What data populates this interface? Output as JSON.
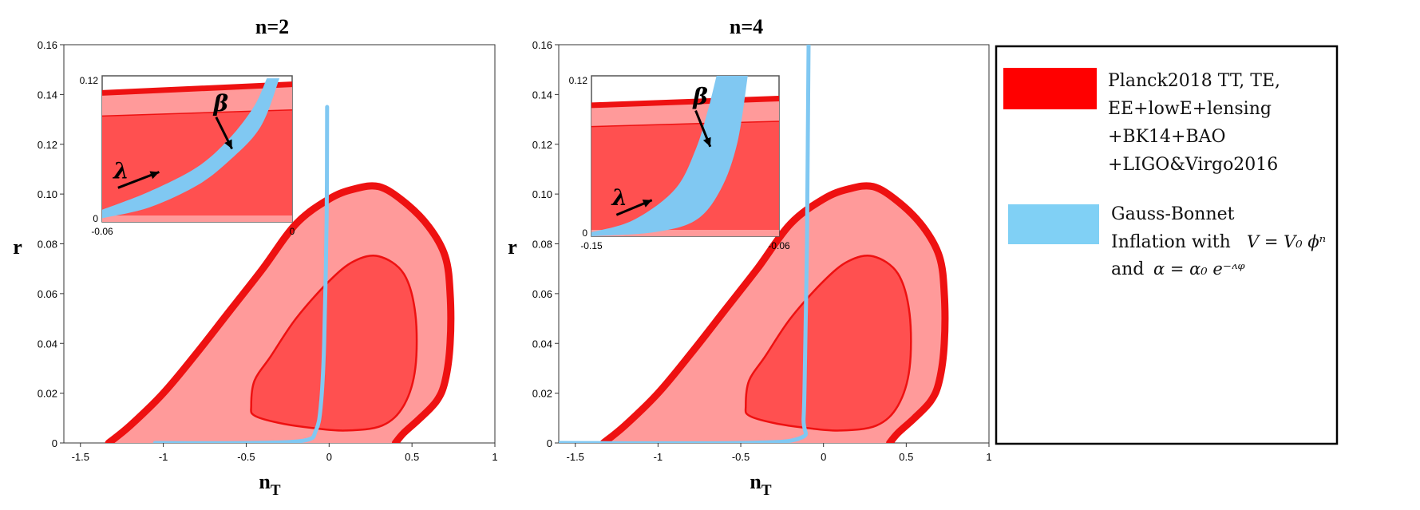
{
  "colors": {
    "outer_contour": "#ff9a9a",
    "inner_contour": "#ff5050",
    "contour_edge": "#ee1111",
    "model_band": "#80c8f2",
    "legend_red": "#ff0000",
    "legend_blue": "#80d0f5",
    "arrow": "#000000"
  },
  "chart_data": [
    {
      "type": "area",
      "panel": "n=2",
      "title": "n=2",
      "xlabel": "n",
      "xlabel_sub": "T",
      "ylabel": "r",
      "xlim": [
        -1.6,
        1.0
      ],
      "ylim": [
        0,
        0.16
      ],
      "xticks": [
        "-1.5",
        "-1",
        "-0.5",
        "0",
        "0.5",
        "1"
      ],
      "xtick_values": [
        -1.5,
        -1,
        -0.5,
        0,
        0.5,
        1
      ],
      "yticks": [
        "0",
        "0.02",
        "0.04",
        "0.06",
        "0.08",
        "0.10",
        "0.12",
        "0.14",
        "0.16"
      ],
      "ytick_values": [
        0,
        0.02,
        0.04,
        0.06,
        0.08,
        0.1,
        0.12,
        0.14,
        0.16
      ],
      "series": [
        {
          "name": "Planck2018 TT, TE, EE+lowE+lensing +BK14+BAO +LIGO&Virgo2016",
          "kind": "contour-2sigma",
          "x": [
            -1.33,
            -1.2,
            -1.0,
            -0.8,
            -0.6,
            -0.4,
            -0.2,
            0.0,
            0.15,
            0.3,
            0.45,
            0.6,
            0.7,
            0.73,
            0.73,
            0.7,
            0.65,
            0.55,
            0.45,
            0.4
          ],
          "y": [
            0.0,
            0.007,
            0.02,
            0.036,
            0.053,
            0.07,
            0.088,
            0.098,
            0.102,
            0.103,
            0.097,
            0.087,
            0.075,
            0.06,
            0.04,
            0.025,
            0.017,
            0.01,
            0.004,
            0.0
          ]
        },
        {
          "name": "Planck2018 TT, TE, EE+lowE+lensing +BK14+BAO +LIGO&Virgo2016",
          "kind": "contour-1sigma",
          "x": [
            -0.47,
            -0.45,
            -0.35,
            -0.2,
            0.0,
            0.15,
            0.3,
            0.45,
            0.52,
            0.52,
            0.45,
            0.32,
            0.1,
            -0.1,
            -0.3,
            -0.45
          ],
          "y": [
            0.015,
            0.025,
            0.035,
            0.05,
            0.065,
            0.073,
            0.075,
            0.068,
            0.052,
            0.03,
            0.015,
            0.007,
            0.005,
            0.006,
            0.008,
            0.011
          ]
        },
        {
          "name": "Gauss-Bonnet Inflation",
          "kind": "model-band",
          "x": [
            -1.05,
            -0.5,
            -0.15,
            -0.08,
            -0.05,
            -0.03,
            -0.015,
            -0.012
          ],
          "y": [
            0.0,
            0.0,
            0.001,
            0.005,
            0.015,
            0.04,
            0.09,
            0.135
          ]
        }
      ],
      "inset": {
        "xlim": [
          -0.06,
          0
        ],
        "ylim": [
          0,
          0.12
        ],
        "xticks": [
          "-0.06",
          "0"
        ],
        "xtick_values": [
          -0.06,
          0
        ],
        "yticks": [
          "0",
          "0.12"
        ],
        "ytick_values": [
          0,
          0.12
        ],
        "planck_edge": {
          "x": [
            -0.06,
            0.0
          ],
          "y": [
            0.106,
            0.113
          ]
        },
        "planck_inner_edge": {
          "x": [
            -0.06,
            0.0
          ],
          "y": [
            0.087,
            0.092
          ]
        },
        "band_upper": {
          "x": [
            -0.06,
            -0.045,
            -0.03,
            -0.02,
            -0.012,
            -0.008
          ],
          "y": [
            0.01,
            0.025,
            0.045,
            0.068,
            0.095,
            0.118
          ]
        },
        "band_lower": {
          "x": [
            -0.06,
            -0.045,
            -0.03,
            -0.02,
            -0.01,
            -0.004
          ],
          "y": [
            0.003,
            0.012,
            0.03,
            0.05,
            0.078,
            0.118
          ]
        },
        "arrows": [
          {
            "label": "λ",
            "from": [
              -0.055,
              0.028
            ],
            "to": [
              -0.042,
              0.041
            ]
          },
          {
            "label": "β",
            "from": [
              -0.024,
              0.086
            ],
            "to": [
              -0.019,
              0.06
            ]
          }
        ]
      }
    },
    {
      "type": "area",
      "panel": "n=4",
      "title": "n=4",
      "xlabel": "n",
      "xlabel_sub": "T",
      "ylabel": "r",
      "xlim": [
        -1.6,
        1.0
      ],
      "ylim": [
        0,
        0.16
      ],
      "xticks": [
        "-1.5",
        "-1",
        "-0.5",
        "0",
        "0.5",
        "1"
      ],
      "xtick_values": [
        -1.5,
        -1,
        -0.5,
        0,
        0.5,
        1
      ],
      "yticks": [
        "0",
        "0.02",
        "0.04",
        "0.06",
        "0.08",
        "0.10",
        "0.12",
        "0.14",
        "0.16"
      ],
      "ytick_values": [
        0,
        0.02,
        0.04,
        0.06,
        0.08,
        0.1,
        0.12,
        0.14,
        0.16
      ],
      "series": [
        {
          "name": "Planck2018 TT, TE, EE+lowE+lensing +BK14+BAO +LIGO&Virgo2016",
          "kind": "contour-2sigma",
          "x": [
            -1.33,
            -1.2,
            -1.0,
            -0.8,
            -0.6,
            -0.4,
            -0.2,
            0.0,
            0.15,
            0.3,
            0.45,
            0.6,
            0.7,
            0.73,
            0.73,
            0.7,
            0.65,
            0.55,
            0.45,
            0.4
          ],
          "y": [
            0.0,
            0.007,
            0.02,
            0.036,
            0.053,
            0.07,
            0.088,
            0.098,
            0.102,
            0.103,
            0.097,
            0.087,
            0.075,
            0.06,
            0.04,
            0.025,
            0.017,
            0.01,
            0.004,
            0.0
          ]
        },
        {
          "name": "Planck2018 TT, TE, EE+lowE+lensing +BK14+BAO +LIGO&Virgo2016",
          "kind": "contour-1sigma",
          "x": [
            -0.47,
            -0.45,
            -0.35,
            -0.2,
            0.0,
            0.15,
            0.3,
            0.45,
            0.52,
            0.52,
            0.45,
            0.32,
            0.1,
            -0.1,
            -0.3,
            -0.45
          ],
          "y": [
            0.015,
            0.025,
            0.035,
            0.05,
            0.065,
            0.073,
            0.075,
            0.068,
            0.052,
            0.03,
            0.015,
            0.007,
            0.005,
            0.006,
            0.008,
            0.011
          ]
        },
        {
          "name": "Gauss-Bonnet Inflation",
          "kind": "model-band",
          "x": [
            -1.6,
            -0.5,
            -0.14,
            -0.12,
            -0.11,
            -0.1,
            -0.095,
            -0.09
          ],
          "y": [
            0.0,
            0.0,
            0.002,
            0.01,
            0.04,
            0.08,
            0.12,
            0.16
          ]
        }
      ],
      "inset": {
        "xlim": [
          -0.15,
          -0.06
        ],
        "ylim": [
          0,
          0.12
        ],
        "xticks": [
          "-0.15",
          "-0.06"
        ],
        "xtick_values": [
          -0.15,
          -0.06
        ],
        "yticks": [
          "0",
          "0.12"
        ],
        "ytick_values": [
          0,
          0.12
        ],
        "planck_edge": {
          "x": [
            -0.15,
            -0.06
          ],
          "y": [
            0.098,
            0.103
          ]
        },
        "planck_inner_edge": {
          "x": [
            -0.15,
            -0.06
          ],
          "y": [
            0.082,
            0.086
          ]
        },
        "band_upper": {
          "x": [
            -0.15,
            -0.13,
            -0.11,
            -0.1,
            -0.094,
            -0.09
          ],
          "y": [
            0.003,
            0.012,
            0.035,
            0.065,
            0.095,
            0.12
          ]
        },
        "band_lower": {
          "x": [
            -0.15,
            -0.12,
            -0.1,
            -0.088,
            -0.08,
            -0.075
          ],
          "y": [
            0.0,
            0.003,
            0.012,
            0.035,
            0.07,
            0.12
          ]
        },
        "arrows": [
          {
            "label": "λ",
            "from": [
              -0.138,
              0.016
            ],
            "to": [
              -0.121,
              0.027
            ]
          },
          {
            "label": "β",
            "from": [
              -0.1,
              0.094
            ],
            "to": [
              -0.093,
              0.067
            ]
          }
        ]
      }
    }
  ],
  "legend": {
    "items": [
      {
        "swatch": "red",
        "lines": [
          "Planck2018 TT, TE,",
          "EE+lowE+lensing",
          "+BK14+BAO",
          "+LIGO&Virgo2016"
        ]
      },
      {
        "swatch": "blue",
        "lines": [
          "Gauss-Bonnet",
          "Inflation with",
          "and"
        ],
        "math_potential": "V = V₀ ϕⁿ",
        "math_coupling": "α = α₀ e⁻ᶺᵠ"
      }
    ]
  }
}
